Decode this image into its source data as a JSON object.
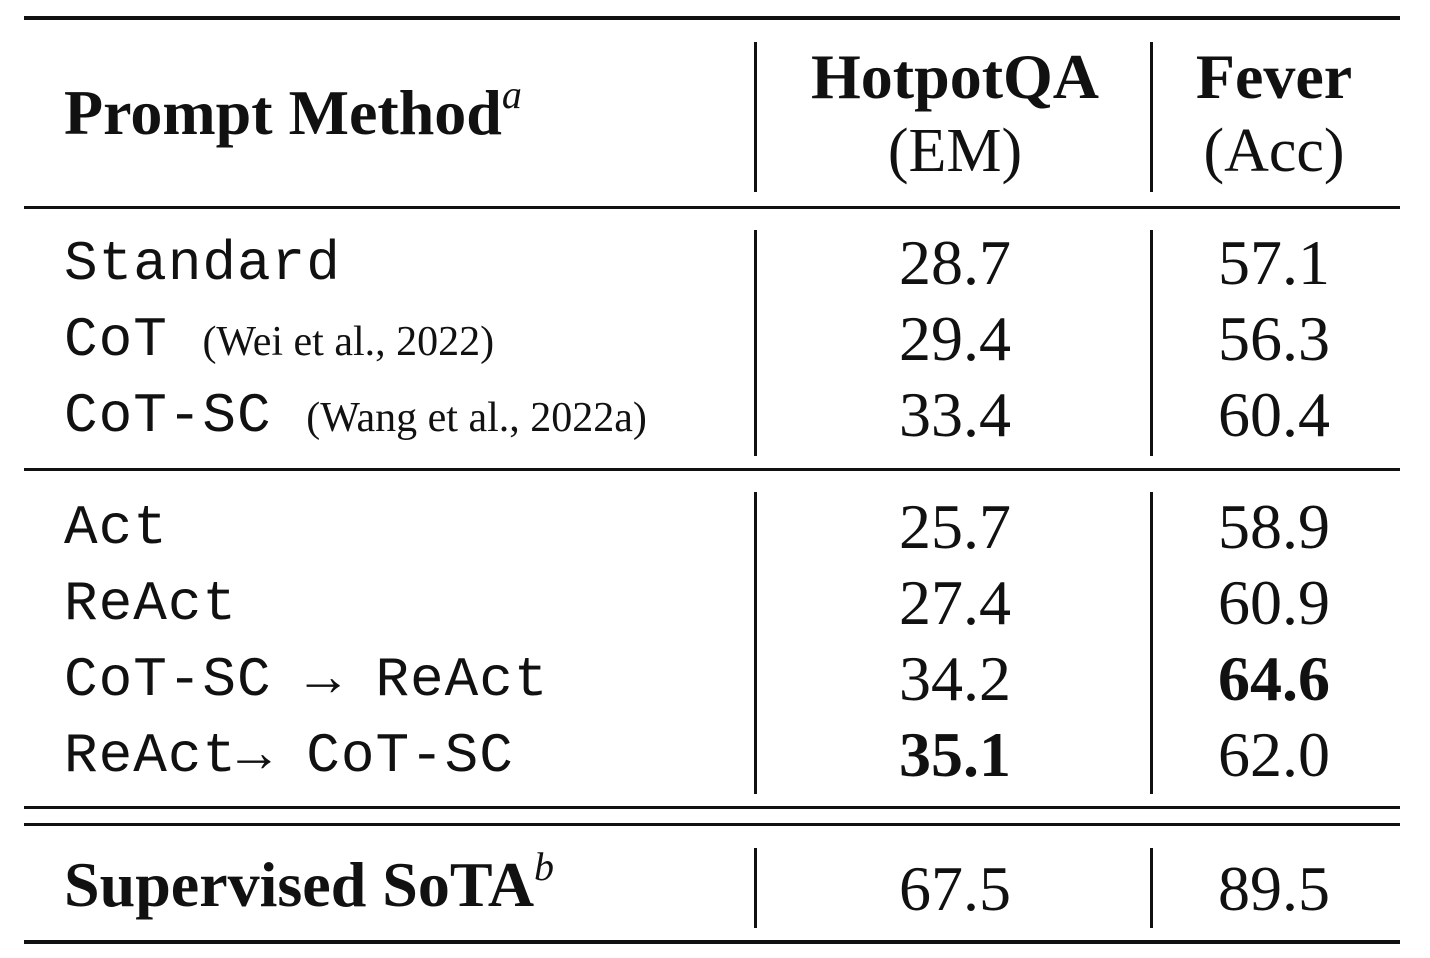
{
  "header": {
    "method": "Prompt Method",
    "method_sup": "a",
    "col1_name": "HotpotQA",
    "col1_metric": "(EM)",
    "col2_name": "Fever",
    "col2_metric": "(Acc)"
  },
  "group1": [
    {
      "method": "Standard",
      "cite": "",
      "hotpot": "28.7",
      "fever": "57.1"
    },
    {
      "method": "CoT",
      "cite": "(Wei et al., 2022)",
      "hotpot": "29.4",
      "fever": "56.3"
    },
    {
      "method": "CoT-SC",
      "cite": "(Wang et al., 2022a)",
      "hotpot": "33.4",
      "fever": "60.4"
    }
  ],
  "group2": [
    {
      "method": "Act",
      "hotpot": "25.7",
      "fever": "58.9"
    },
    {
      "method": "ReAct",
      "hotpot": "27.4",
      "fever": "60.9"
    },
    {
      "method": "CoT-SC → ReAct",
      "hotpot": "34.2",
      "fever": "64.6"
    },
    {
      "method": "ReAct→ CoT-SC",
      "hotpot": "35.1",
      "fever": "62.0"
    }
  ],
  "supervised": {
    "method": "Supervised SoTA",
    "method_sup": "b",
    "hotpot": "67.5",
    "fever": "89.5"
  }
}
